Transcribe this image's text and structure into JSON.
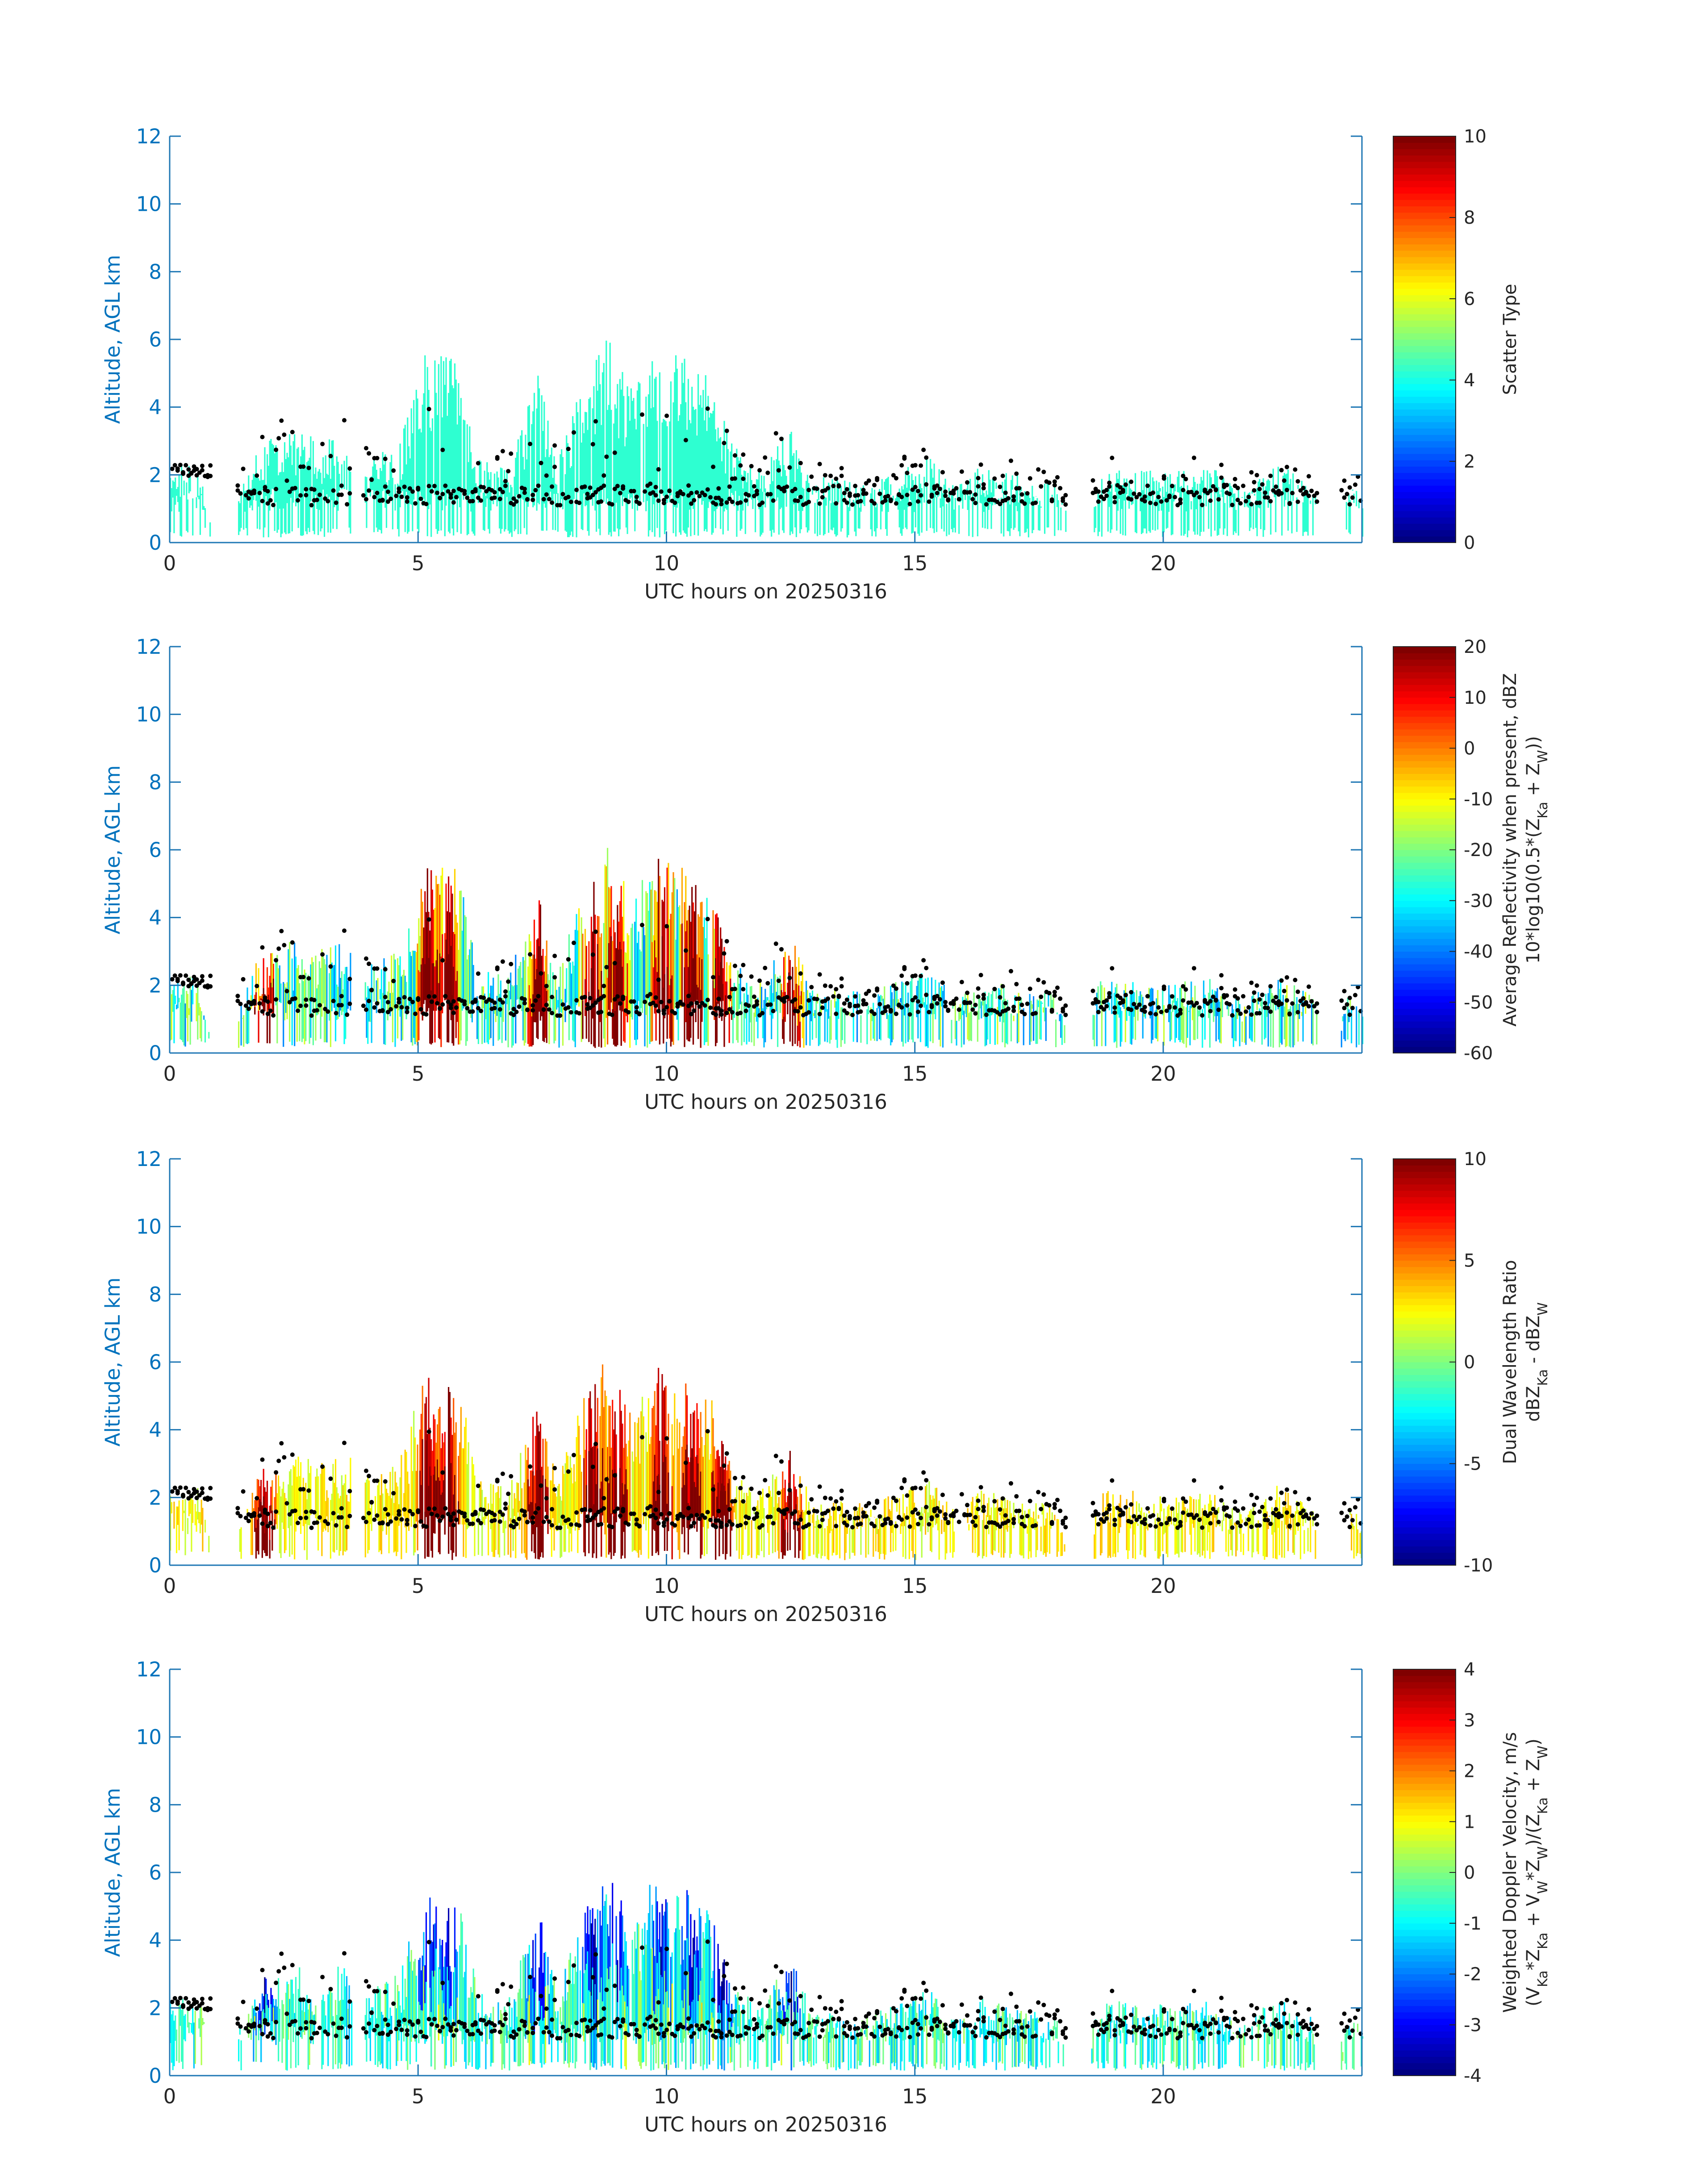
{
  "colors": {
    "axis": "#0072bd",
    "text": "#262626",
    "marker": "#000000",
    "colormap": "jet"
  },
  "chart_data": [
    {
      "type": "heatmap",
      "xlabel": "UTC hours on 20250316",
      "ylabel": "Altitude, AGL km",
      "xlim": [
        0,
        24
      ],
      "ylim": [
        0,
        12
      ],
      "xticks": [
        "0",
        "5",
        "10",
        "15",
        "20"
      ],
      "yticks": [
        "0",
        "2",
        "4",
        "6",
        "8",
        "10",
        "12"
      ],
      "colorbar": {
        "title_lines": [
          "Scatter Type"
        ],
        "range": [
          0,
          10
        ],
        "ticks": [
          "0",
          "2",
          "4",
          "6",
          "8",
          "10"
        ]
      },
      "mode": "scatter_type",
      "echo_columns": [
        [
          1.6,
          3.3
        ],
        [
          3.3,
          3.3
        ],
        [
          4.3,
          3.0
        ],
        [
          5.2,
          5.6
        ],
        [
          5.6,
          5.5
        ],
        [
          7.4,
          5.0
        ],
        [
          8.5,
          6.0
        ],
        [
          9.0,
          6.2
        ],
        [
          9.9,
          6.2
        ],
        [
          10.5,
          5.6
        ],
        [
          11.1,
          4.8
        ],
        [
          12.5,
          3.5
        ],
        [
          15.3,
          2.7
        ],
        [
          16.5,
          2.3
        ],
        [
          18.9,
          2.3
        ],
        [
          20.2,
          2.2
        ],
        [
          22.4,
          2.4
        ]
      ],
      "cloud_base_km_approx": [
        1.0,
        2.5
      ]
    },
    {
      "type": "heatmap",
      "xlabel": "UTC hours on 20250316",
      "ylabel": "Altitude, AGL km",
      "xlim": [
        0,
        24
      ],
      "ylim": [
        0,
        12
      ],
      "xticks": [
        "0",
        "5",
        "10",
        "15",
        "20"
      ],
      "yticks": [
        "0",
        "2",
        "4",
        "6",
        "8",
        "10",
        "12"
      ],
      "colorbar": {
        "title_lines": [
          "Average Reflectivity when present, dBZ",
          "10*log10(0.5*(Z_Ka + Z_W))"
        ],
        "range": [
          -60,
          20
        ],
        "ticks": [
          "-60",
          "-50",
          "-40",
          "-30",
          "-20",
          "-10",
          "0",
          "10",
          "20"
        ]
      },
      "mode": "reflectivity",
      "echo_columns": [
        [
          1.9,
          3.3
        ],
        [
          5.2,
          5.6
        ],
        [
          5.6,
          5.5
        ],
        [
          7.4,
          5.0
        ],
        [
          8.5,
          6.0
        ],
        [
          9.0,
          6.2
        ],
        [
          9.9,
          6.2
        ],
        [
          10.5,
          5.6
        ],
        [
          11.1,
          4.8
        ],
        [
          12.5,
          3.5
        ]
      ],
      "cloud_base_km_approx": [
        1.0,
        2.5
      ]
    },
    {
      "type": "heatmap",
      "xlabel": "UTC hours on 20250316",
      "ylabel": "Altitude, AGL km",
      "xlim": [
        0,
        24
      ],
      "ylim": [
        0,
        12
      ],
      "xticks": [
        "0",
        "5",
        "10",
        "15",
        "20"
      ],
      "yticks": [
        "0",
        "2",
        "4",
        "6",
        "8",
        "10",
        "12"
      ],
      "colorbar": {
        "title_lines": [
          "Dual Wavelength Ratio",
          "dBZ_Ka - dBZ_W"
        ],
        "range": [
          -10,
          10
        ],
        "ticks": [
          "-10",
          "-5",
          "0",
          "5",
          "10"
        ]
      },
      "mode": "dwr",
      "echo_columns": [
        [
          1.9,
          3.2
        ],
        [
          5.2,
          5.6
        ],
        [
          5.6,
          5.4
        ],
        [
          7.4,
          5.0
        ],
        [
          8.5,
          6.0
        ],
        [
          9.0,
          6.1
        ],
        [
          9.9,
          6.2
        ],
        [
          10.5,
          5.6
        ],
        [
          11.1,
          4.8
        ],
        [
          12.5,
          3.5
        ]
      ],
      "cloud_base_km_approx": [
        1.0,
        2.5
      ]
    },
    {
      "type": "heatmap",
      "xlabel": "UTC hours on 20250316",
      "ylabel": "Altitude, AGL km",
      "xlim": [
        0,
        24
      ],
      "ylim": [
        0,
        12
      ],
      "xticks": [
        "0",
        "5",
        "10",
        "15",
        "20"
      ],
      "yticks": [
        "0",
        "2",
        "4",
        "6",
        "8",
        "10",
        "12"
      ],
      "colorbar": {
        "title_lines": [
          "Weighted Doppler Velocity, m/s",
          "(V_Ka*Z_Ka + V_W*Z_W)/(Z_Ka + Z_W)"
        ],
        "range": [
          -4,
          4
        ],
        "ticks": [
          "-4",
          "-3",
          "-2",
          "-1",
          "0",
          "1",
          "2",
          "3",
          "4"
        ]
      },
      "mode": "velocity",
      "echo_columns": [
        [
          1.9,
          3.3
        ],
        [
          5.2,
          5.6
        ],
        [
          5.6,
          5.5
        ],
        [
          7.4,
          5.0
        ],
        [
          8.5,
          6.0
        ],
        [
          9.0,
          6.2
        ],
        [
          9.9,
          6.2
        ],
        [
          10.5,
          5.6
        ],
        [
          11.1,
          4.8
        ],
        [
          12.5,
          3.5
        ]
      ],
      "cloud_base_km_approx": [
        1.0,
        2.5
      ]
    }
  ]
}
